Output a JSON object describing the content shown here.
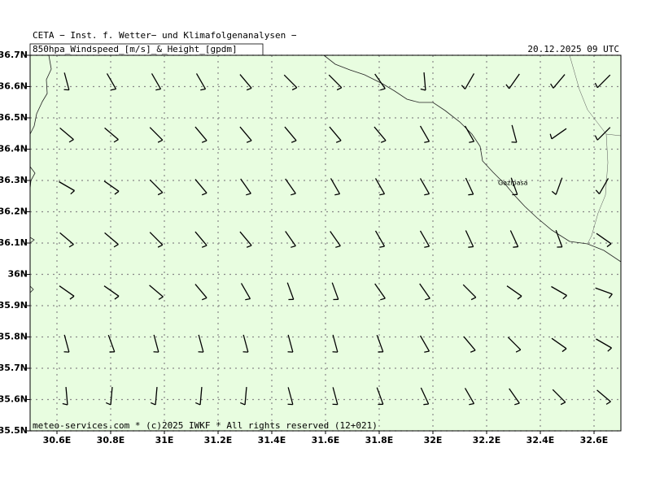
{
  "header": {
    "institute": "CETA − Inst. f. Wetter− und Klimafolgenanalysen −",
    "field": "850hpa_Windspeed_[m/s]_&_Height_[gpdm]",
    "valid_time": "20.12.2025 09 UTC"
  },
  "map": {
    "lonlim": [
      30.5,
      32.7
    ],
    "latlim": [
      35.5,
      36.7
    ],
    "lon_ticks": [
      {
        "value": 30.6,
        "label": "30.6E"
      },
      {
        "value": 30.8,
        "label": "30.8E"
      },
      {
        "value": 31,
        "label": "31E"
      },
      {
        "value": 31.2,
        "label": "31.2E"
      },
      {
        "value": 31.4,
        "label": "31.4E"
      },
      {
        "value": 31.6,
        "label": "31.6E"
      },
      {
        "value": 31.8,
        "label": "31.8E"
      },
      {
        "value": 32,
        "label": "32E"
      },
      {
        "value": 32.2,
        "label": "32.2E"
      },
      {
        "value": 32.4,
        "label": "32.4E"
      },
      {
        "value": 32.6,
        "label": "32.6E"
      }
    ],
    "lat_ticks": [
      {
        "value": 36.7,
        "label": "36.7N"
      },
      {
        "value": 36.6,
        "label": "36.6N"
      },
      {
        "value": 36.5,
        "label": "36.5N"
      },
      {
        "value": 36.4,
        "label": "36.4N"
      },
      {
        "value": 36.3,
        "label": "36.3N"
      },
      {
        "value": 36.2,
        "label": "36.2N"
      },
      {
        "value": 36.1,
        "label": "36.1N"
      },
      {
        "value": 36,
        "label": "36N"
      },
      {
        "value": 35.9,
        "label": "35.9N"
      },
      {
        "value": 35.8,
        "label": "35.8N"
      },
      {
        "value": 35.7,
        "label": "35.7N"
      },
      {
        "value": 35.6,
        "label": "35.6N"
      },
      {
        "value": 35.5,
        "label": "35.5N"
      }
    ],
    "place": "Gazipasa",
    "wind_direction_deg": [
      [
        345,
        330,
        330,
        330,
        320,
        315,
        315,
        325,
        355,
        30,
        35,
        40,
        45
      ],
      [
        310,
        310,
        315,
        320,
        320,
        320,
        320,
        320,
        330,
        330,
        345,
        55,
        45
      ],
      [
        300,
        305,
        315,
        320,
        325,
        325,
        330,
        330,
        330,
        335,
        340,
        20,
        30
      ],
      [
        310,
        310,
        315,
        320,
        320,
        325,
        325,
        330,
        330,
        335,
        335,
        340,
        305
      ],
      [
        305,
        305,
        310,
        320,
        330,
        340,
        340,
        325,
        325,
        315,
        305,
        300,
        290
      ],
      [
        345,
        340,
        345,
        345,
        345,
        345,
        345,
        340,
        330,
        320,
        315,
        305,
        300
      ],
      [
        355,
        5,
        5,
        5,
        5,
        345,
        345,
        340,
        335,
        330,
        325,
        315,
        310
      ]
    ]
  },
  "footer": "meteo-services.com * (c)2025 IWKF * All rights reserved (12+021)"
}
